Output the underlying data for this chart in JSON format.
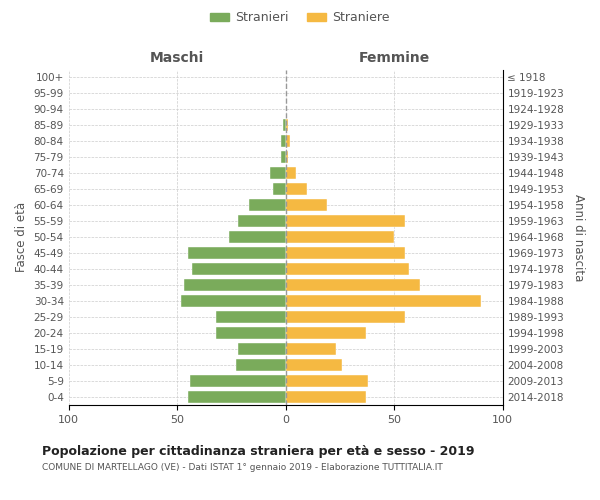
{
  "age_groups": [
    "100+",
    "95-99",
    "90-94",
    "85-89",
    "80-84",
    "75-79",
    "70-74",
    "65-69",
    "60-64",
    "55-59",
    "50-54",
    "45-49",
    "40-44",
    "35-39",
    "30-34",
    "25-29",
    "20-24",
    "15-19",
    "10-14",
    "5-9",
    "0-4"
  ],
  "birth_years": [
    "≤ 1918",
    "1919-1923",
    "1924-1928",
    "1929-1933",
    "1934-1938",
    "1939-1943",
    "1944-1948",
    "1949-1953",
    "1954-1958",
    "1959-1963",
    "1964-1968",
    "1969-1973",
    "1974-1978",
    "1979-1983",
    "1984-1988",
    "1989-1993",
    "1994-1998",
    "1999-2003",
    "2004-2008",
    "2009-2013",
    "2014-2018"
  ],
  "males": [
    0,
    0,
    0,
    1,
    2,
    2,
    7,
    6,
    17,
    22,
    26,
    45,
    43,
    47,
    48,
    32,
    32,
    22,
    23,
    44,
    45
  ],
  "females": [
    0,
    0,
    0,
    1,
    2,
    1,
    5,
    10,
    19,
    55,
    50,
    55,
    57,
    62,
    90,
    55,
    37,
    23,
    26,
    38,
    37
  ],
  "male_color": "#7aab5b",
  "female_color": "#f5b942",
  "center_line_color": "#999999",
  "grid_color": "#cccccc",
  "bg_color": "#ffffff",
  "text_color": "#555555",
  "title": "Popolazione per cittadinanza straniera per età e sesso - 2019",
  "subtitle": "COMUNE DI MARTELLAGO (VE) - Dati ISTAT 1° gennaio 2019 - Elaborazione TUTTITALIA.IT",
  "xlabel_left": "Maschi",
  "xlabel_right": "Femmine",
  "ylabel_left": "Fasce di età",
  "ylabel_right": "Anni di nascita",
  "legend_stranieri": "Stranieri",
  "legend_straniere": "Straniere",
  "xlim": 100
}
